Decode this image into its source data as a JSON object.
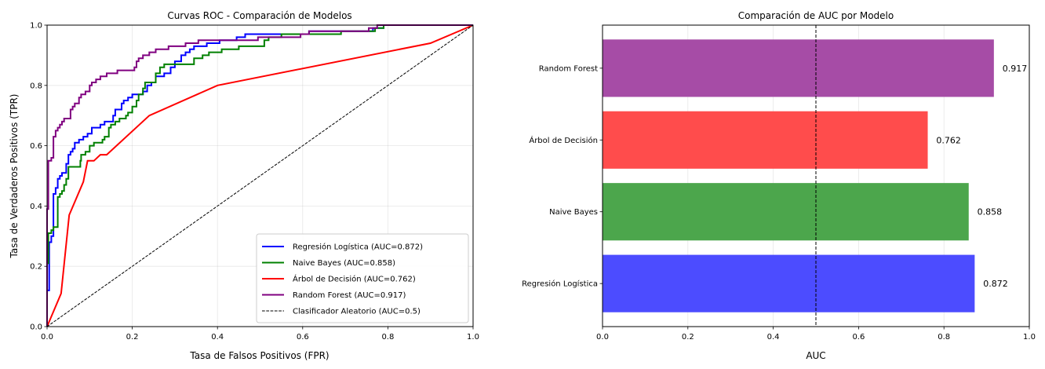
{
  "chart_data": [
    {
      "type": "line",
      "title": "Curvas ROC - Comparación de Modelos",
      "xlabel": "Tasa de Falsos Positivos (FPR)",
      "ylabel": "Tasa de Verdaderos Positivos (TPR)",
      "xlim": [
        0,
        1
      ],
      "ylim": [
        0,
        1
      ],
      "xticks": [
        "0.0",
        "0.2",
        "0.4",
        "0.6",
        "0.8",
        "1.0"
      ],
      "yticks": [
        "0.0",
        "0.2",
        "0.4",
        "0.6",
        "0.8",
        "1.0"
      ],
      "grid": true,
      "legend_position": "lower-right",
      "series": [
        {
          "name": "Regresión Logística (AUC=0.872)",
          "color": "#0000ff",
          "style": "solid",
          "points": [
            [
              0,
              0
            ],
            [
              0,
              0.12
            ],
            [
              0.005,
              0.12
            ],
            [
              0.005,
              0.28
            ],
            [
              0.01,
              0.28
            ],
            [
              0.01,
              0.3
            ],
            [
              0.015,
              0.3
            ],
            [
              0.015,
              0.44
            ],
            [
              0.02,
              0.44
            ],
            [
              0.02,
              0.46
            ],
            [
              0.025,
              0.46
            ],
            [
              0.025,
              0.49
            ],
            [
              0.03,
              0.49
            ],
            [
              0.03,
              0.5
            ],
            [
              0.035,
              0.5
            ],
            [
              0.035,
              0.51
            ],
            [
              0.045,
              0.51
            ],
            [
              0.045,
              0.54
            ],
            [
              0.05,
              0.54
            ],
            [
              0.05,
              0.57
            ],
            [
              0.055,
              0.57
            ],
            [
              0.055,
              0.58
            ],
            [
              0.06,
              0.58
            ],
            [
              0.06,
              0.59
            ],
            [
              0.065,
              0.59
            ],
            [
              0.065,
              0.61
            ],
            [
              0.075,
              0.61
            ],
            [
              0.075,
              0.62
            ],
            [
              0.085,
              0.62
            ],
            [
              0.085,
              0.63
            ],
            [
              0.095,
              0.63
            ],
            [
              0.095,
              0.64
            ],
            [
              0.105,
              0.64
            ],
            [
              0.105,
              0.66
            ],
            [
              0.125,
              0.66
            ],
            [
              0.125,
              0.67
            ],
            [
              0.135,
              0.67
            ],
            [
              0.135,
              0.68
            ],
            [
              0.155,
              0.68
            ],
            [
              0.155,
              0.7
            ],
            [
              0.16,
              0.7
            ],
            [
              0.16,
              0.72
            ],
            [
              0.175,
              0.72
            ],
            [
              0.175,
              0.74
            ],
            [
              0.18,
              0.74
            ],
            [
              0.18,
              0.75
            ],
            [
              0.19,
              0.75
            ],
            [
              0.19,
              0.76
            ],
            [
              0.2,
              0.76
            ],
            [
              0.2,
              0.77
            ],
            [
              0.225,
              0.77
            ],
            [
              0.225,
              0.78
            ],
            [
              0.235,
              0.78
            ],
            [
              0.235,
              0.8
            ],
            [
              0.245,
              0.8
            ],
            [
              0.245,
              0.81
            ],
            [
              0.255,
              0.81
            ],
            [
              0.255,
              0.83
            ],
            [
              0.275,
              0.83
            ],
            [
              0.275,
              0.84
            ],
            [
              0.29,
              0.84
            ],
            [
              0.29,
              0.86
            ],
            [
              0.3,
              0.86
            ],
            [
              0.3,
              0.88
            ],
            [
              0.315,
              0.88
            ],
            [
              0.315,
              0.9
            ],
            [
              0.325,
              0.9
            ],
            [
              0.325,
              0.91
            ],
            [
              0.335,
              0.91
            ],
            [
              0.335,
              0.92
            ],
            [
              0.345,
              0.92
            ],
            [
              0.345,
              0.93
            ],
            [
              0.375,
              0.93
            ],
            [
              0.375,
              0.94
            ],
            [
              0.405,
              0.94
            ],
            [
              0.405,
              0.95
            ],
            [
              0.445,
              0.95
            ],
            [
              0.445,
              0.96
            ],
            [
              0.465,
              0.96
            ],
            [
              0.465,
              0.97
            ],
            [
              0.615,
              0.97
            ],
            [
              0.615,
              0.98
            ],
            [
              0.765,
              0.98
            ],
            [
              0.765,
              0.99
            ],
            [
              0.79,
              0.99
            ],
            [
              0.79,
              1.0
            ],
            [
              1.0,
              1.0
            ]
          ]
        },
        {
          "name": "Naive Bayes (AUC=0.858)",
          "color": "#008000",
          "style": "solid",
          "points": [
            [
              0,
              0
            ],
            [
              0,
              0.21
            ],
            [
              0.003,
              0.21
            ],
            [
              0.003,
              0.31
            ],
            [
              0.01,
              0.31
            ],
            [
              0.01,
              0.32
            ],
            [
              0.015,
              0.32
            ],
            [
              0.015,
              0.33
            ],
            [
              0.025,
              0.33
            ],
            [
              0.025,
              0.43
            ],
            [
              0.03,
              0.43
            ],
            [
              0.03,
              0.44
            ],
            [
              0.035,
              0.44
            ],
            [
              0.035,
              0.45
            ],
            [
              0.04,
              0.45
            ],
            [
              0.04,
              0.47
            ],
            [
              0.045,
              0.47
            ],
            [
              0.045,
              0.49
            ],
            [
              0.05,
              0.49
            ],
            [
              0.05,
              0.53
            ],
            [
              0.078,
              0.53
            ],
            [
              0.078,
              0.55
            ],
            [
              0.08,
              0.55
            ],
            [
              0.08,
              0.57
            ],
            [
              0.09,
              0.57
            ],
            [
              0.09,
              0.58
            ],
            [
              0.1,
              0.58
            ],
            [
              0.1,
              0.6
            ],
            [
              0.11,
              0.6
            ],
            [
              0.11,
              0.61
            ],
            [
              0.13,
              0.61
            ],
            [
              0.13,
              0.62
            ],
            [
              0.135,
              0.62
            ],
            [
              0.135,
              0.63
            ],
            [
              0.145,
              0.63
            ],
            [
              0.145,
              0.66
            ],
            [
              0.15,
              0.66
            ],
            [
              0.15,
              0.67
            ],
            [
              0.16,
              0.67
            ],
            [
              0.16,
              0.68
            ],
            [
              0.17,
              0.68
            ],
            [
              0.17,
              0.69
            ],
            [
              0.185,
              0.69
            ],
            [
              0.185,
              0.7
            ],
            [
              0.19,
              0.7
            ],
            [
              0.19,
              0.71
            ],
            [
              0.2,
              0.71
            ],
            [
              0.2,
              0.73
            ],
            [
              0.21,
              0.73
            ],
            [
              0.21,
              0.75
            ],
            [
              0.215,
              0.75
            ],
            [
              0.215,
              0.77
            ],
            [
              0.225,
              0.77
            ],
            [
              0.225,
              0.79
            ],
            [
              0.23,
              0.79
            ],
            [
              0.23,
              0.81
            ],
            [
              0.255,
              0.81
            ],
            [
              0.255,
              0.84
            ],
            [
              0.265,
              0.84
            ],
            [
              0.265,
              0.86
            ],
            [
              0.275,
              0.86
            ],
            [
              0.275,
              0.87
            ],
            [
              0.345,
              0.87
            ],
            [
              0.345,
              0.89
            ],
            [
              0.365,
              0.89
            ],
            [
              0.365,
              0.9
            ],
            [
              0.38,
              0.9
            ],
            [
              0.38,
              0.91
            ],
            [
              0.41,
              0.91
            ],
            [
              0.41,
              0.92
            ],
            [
              0.45,
              0.92
            ],
            [
              0.45,
              0.93
            ],
            [
              0.51,
              0.93
            ],
            [
              0.51,
              0.95
            ],
            [
              0.52,
              0.95
            ],
            [
              0.52,
              0.96
            ],
            [
              0.55,
              0.96
            ],
            [
              0.55,
              0.97
            ],
            [
              0.69,
              0.97
            ],
            [
              0.69,
              0.98
            ],
            [
              0.77,
              0.98
            ],
            [
              0.77,
              0.99
            ],
            [
              0.79,
              0.99
            ],
            [
              0.79,
              1.0
            ],
            [
              1.0,
              1.0
            ]
          ]
        },
        {
          "name": "Árbol de Decisión (AUC=0.762)",
          "color": "#ff0000",
          "style": "solid",
          "points": [
            [
              0,
              0
            ],
            [
              0.033,
              0.11
            ],
            [
              0.052,
              0.37
            ],
            [
              0.085,
              0.48
            ],
            [
              0.095,
              0.55
            ],
            [
              0.11,
              0.55
            ],
            [
              0.125,
              0.57
            ],
            [
              0.14,
              0.57
            ],
            [
              0.24,
              0.7
            ],
            [
              0.4,
              0.8
            ],
            [
              0.9,
              0.94
            ],
            [
              1.0,
              1.0
            ]
          ]
        },
        {
          "name": "Random Forest (AUC=0.917)",
          "color": "#800080",
          "style": "solid",
          "points": [
            [
              0,
              0
            ],
            [
              0,
              0.39
            ],
            [
              0.003,
              0.39
            ],
            [
              0.003,
              0.55
            ],
            [
              0.01,
              0.55
            ],
            [
              0.01,
              0.56
            ],
            [
              0.015,
              0.56
            ],
            [
              0.015,
              0.63
            ],
            [
              0.02,
              0.63
            ],
            [
              0.02,
              0.65
            ],
            [
              0.025,
              0.65
            ],
            [
              0.025,
              0.66
            ],
            [
              0.03,
              0.66
            ],
            [
              0.03,
              0.67
            ],
            [
              0.035,
              0.67
            ],
            [
              0.035,
              0.68
            ],
            [
              0.04,
              0.68
            ],
            [
              0.04,
              0.69
            ],
            [
              0.055,
              0.69
            ],
            [
              0.055,
              0.72
            ],
            [
              0.06,
              0.72
            ],
            [
              0.06,
              0.73
            ],
            [
              0.065,
              0.73
            ],
            [
              0.065,
              0.74
            ],
            [
              0.075,
              0.74
            ],
            [
              0.075,
              0.76
            ],
            [
              0.08,
              0.76
            ],
            [
              0.08,
              0.77
            ],
            [
              0.09,
              0.77
            ],
            [
              0.09,
              0.78
            ],
            [
              0.1,
              0.78
            ],
            [
              0.1,
              0.8
            ],
            [
              0.105,
              0.8
            ],
            [
              0.105,
              0.81
            ],
            [
              0.115,
              0.81
            ],
            [
              0.115,
              0.82
            ],
            [
              0.125,
              0.82
            ],
            [
              0.125,
              0.83
            ],
            [
              0.14,
              0.83
            ],
            [
              0.14,
              0.84
            ],
            [
              0.165,
              0.84
            ],
            [
              0.165,
              0.85
            ],
            [
              0.205,
              0.85
            ],
            [
              0.205,
              0.86
            ],
            [
              0.21,
              0.86
            ],
            [
              0.21,
              0.88
            ],
            [
              0.215,
              0.88
            ],
            [
              0.215,
              0.89
            ],
            [
              0.225,
              0.89
            ],
            [
              0.225,
              0.9
            ],
            [
              0.24,
              0.9
            ],
            [
              0.24,
              0.91
            ],
            [
              0.255,
              0.91
            ],
            [
              0.255,
              0.92
            ],
            [
              0.285,
              0.92
            ],
            [
              0.285,
              0.93
            ],
            [
              0.325,
              0.93
            ],
            [
              0.325,
              0.94
            ],
            [
              0.355,
              0.94
            ],
            [
              0.355,
              0.95
            ],
            [
              0.495,
              0.95
            ],
            [
              0.495,
              0.96
            ],
            [
              0.595,
              0.96
            ],
            [
              0.595,
              0.97
            ],
            [
              0.615,
              0.97
            ],
            [
              0.615,
              0.98
            ],
            [
              0.755,
              0.98
            ],
            [
              0.755,
              0.99
            ],
            [
              0.775,
              0.99
            ],
            [
              0.775,
              1.0
            ],
            [
              1.0,
              1.0
            ]
          ]
        },
        {
          "name": "Clasificador Aleatorio (AUC=0.5)",
          "color": "#000000",
          "style": "dashed",
          "points": [
            [
              0,
              0
            ],
            [
              1,
              1
            ]
          ]
        }
      ]
    },
    {
      "type": "bar",
      "orientation": "horizontal",
      "title": "Comparación de AUC por Modelo",
      "xlabel": "AUC",
      "ylabel": "",
      "xlim": [
        0,
        1
      ],
      "xticks": [
        "0.0",
        "0.2",
        "0.4",
        "0.6",
        "0.8",
        "1.0"
      ],
      "grid": true,
      "reference_line": 0.5,
      "categories": [
        "Regresión Logística",
        "Naive Bayes",
        "Árbol de Decisión",
        "Random Forest"
      ],
      "values": [
        0.872,
        0.858,
        0.762,
        0.917
      ],
      "labels": [
        "0.872",
        "0.858",
        "0.762",
        "0.917"
      ],
      "colors": [
        "#4c4cff",
        "#4ca64c",
        "#ff4c4c",
        "#a64ca6"
      ]
    }
  ]
}
